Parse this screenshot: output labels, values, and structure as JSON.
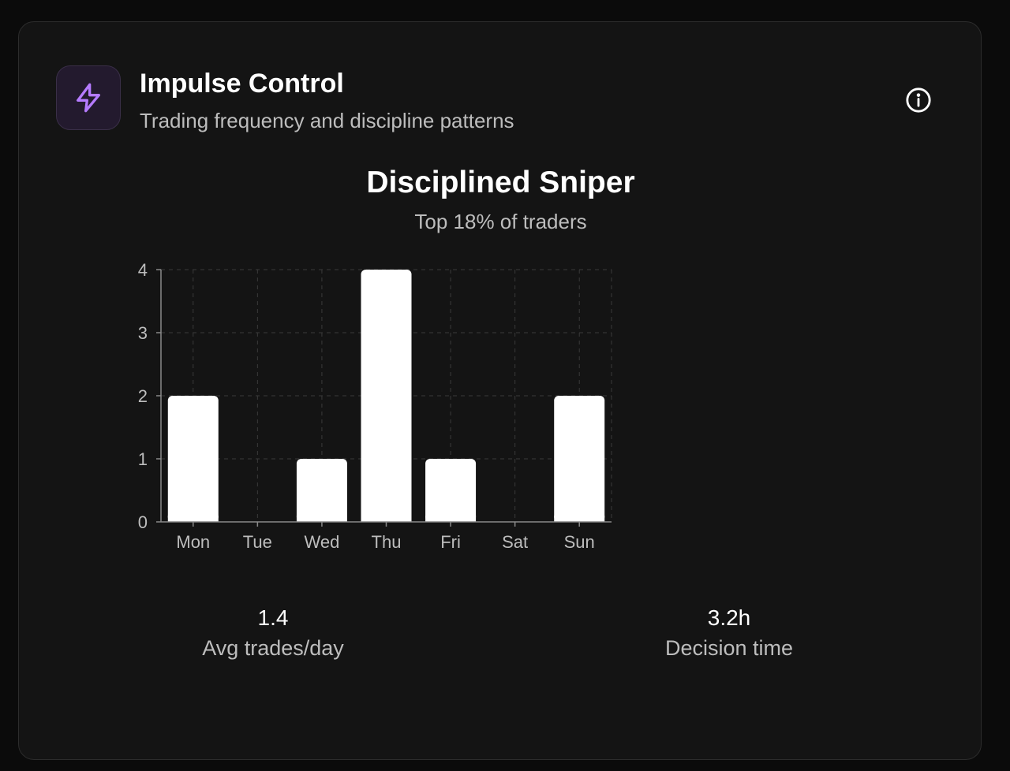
{
  "header": {
    "title": "Impulse Control",
    "subtitle": "Trading frequency and discipline patterns",
    "icon": "lightning-bolt-icon",
    "info_icon": "info-circle-icon",
    "accent_color": "#b57bff"
  },
  "rank": {
    "title": "Disciplined Sniper",
    "subtitle": "Top 18% of traders"
  },
  "chart_data": {
    "type": "bar",
    "categories": [
      "Mon",
      "Tue",
      "Wed",
      "Thu",
      "Fri",
      "Sat",
      "Sun"
    ],
    "values": [
      2,
      0,
      1,
      4,
      1,
      0,
      2
    ],
    "yticks": [
      "0",
      "1",
      "2",
      "3",
      "4"
    ],
    "ylim": [
      0,
      4
    ],
    "grid": true,
    "bar_color": "#ffffff"
  },
  "stats": [
    {
      "value": "1.4",
      "label": "Avg trades/day"
    },
    {
      "value": "3.2h",
      "label": "Decision time"
    }
  ]
}
